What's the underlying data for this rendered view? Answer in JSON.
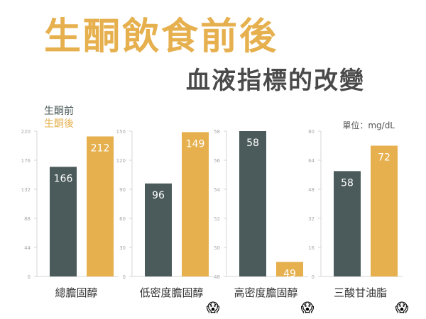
{
  "title": "生酮飲食前後",
  "subtitle": "血液指標的改變",
  "legend": {
    "before": "生酮前",
    "after": "生酮後"
  },
  "unit": "單位：mg/dL",
  "colors": {
    "before": "#4b5a5a",
    "after": "#e6b04e",
    "axis": "#d4d4d4",
    "tick": "#a8a8a8"
  },
  "alert_icon": "scared-face-icon",
  "alert_symbol": "😱",
  "chart_data": [
    {
      "type": "bar",
      "category": "總膽固醇",
      "series": [
        {
          "name": "生酮前",
          "value": 166
        },
        {
          "name": "生酮後",
          "value": 212
        }
      ],
      "ylim": [
        0,
        220
      ],
      "yticks": [
        "0",
        "44",
        "88",
        "132",
        "176",
        "220"
      ],
      "alert": false
    },
    {
      "type": "bar",
      "category": "低密度膽固醇",
      "series": [
        {
          "name": "生酮前",
          "value": 96
        },
        {
          "name": "生酮後",
          "value": 149
        }
      ],
      "ylim": [
        0,
        150
      ],
      "yticks": [
        "0",
        "30",
        "60",
        "90",
        "120",
        "150"
      ],
      "alert": true
    },
    {
      "type": "bar",
      "category": "高密度膽固醇",
      "series": [
        {
          "name": "生酮前",
          "value": 58
        },
        {
          "name": "生酮後",
          "value": 49
        }
      ],
      "ylim": [
        48,
        58
      ],
      "yticks": [
        "48",
        "50",
        "52",
        "54",
        "56",
        "58"
      ],
      "alert": true
    },
    {
      "type": "bar",
      "category": "三酸甘油脂",
      "series": [
        {
          "name": "生酮前",
          "value": 58
        },
        {
          "name": "生酮後",
          "value": 72
        }
      ],
      "ylim": [
        0,
        80
      ],
      "yticks": [
        "0",
        "16",
        "32",
        "48",
        "64",
        "80"
      ],
      "alert": true
    }
  ]
}
